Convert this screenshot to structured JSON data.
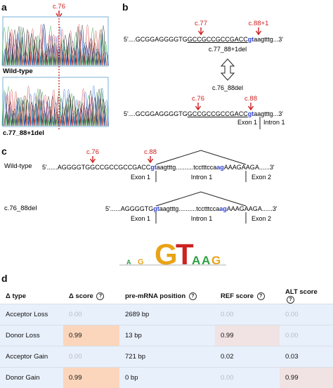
{
  "panel_a": {
    "letter": "a",
    "marker": "c.76",
    "wild_label": "Wild-type",
    "mut_label": "c.77_88+1del"
  },
  "panel_b": {
    "letter": "b",
    "top_seq": {
      "prefix": "5'....GCGGAGGGGTG",
      "mid": "GCCGCCGCCGACC",
      "gt": "gt",
      "tail": "aagtttg...3'"
    },
    "top_markers": {
      "left": "c.77",
      "right": "c.88+1"
    },
    "top_label": "c.77_88+1del",
    "bottom_label": "c.76_88del",
    "bottom_markers": {
      "left": "c.76",
      "right": "c.88"
    },
    "bottom_seq": {
      "prefix": "5'....GCGGAGGGGTG",
      "mid": "GCCGCCGCCGACC",
      "gt": "gt",
      "tail": "aagtttg...3'"
    },
    "exon": "Exon 1",
    "intron": "Intron 1"
  },
  "panel_c": {
    "letter": "c",
    "wild_label": "Wild-type",
    "mut_label": "c.76_88del",
    "wt_markers": {
      "left": "c.76",
      "right": "c.88"
    },
    "wt_seq": {
      "a": "5'......AGGGGTGGCCGCCGCCGACC",
      "gt": "gt",
      "b": "aagtttg..........tcctttcca",
      "ag": "ag",
      "c": "AAAGAAGA......3'"
    },
    "mut_seq": {
      "a": "5'......AGGGGTG",
      "gt": "gt",
      "b": "aagtttg..........tcctttcca",
      "ag": "ag",
      "c": "AAAGAAGA......3'"
    },
    "exon1": "Exon 1",
    "intron1": "Intron 1",
    "exon2": "Exon 2",
    "logo_letters": [
      "A",
      "G",
      "G",
      "T",
      "A",
      "A",
      "G"
    ]
  },
  "panel_d": {
    "letter": "d",
    "columns": [
      "Δ type",
      "Δ score",
      "pre-mRNA position",
      "REF score",
      "ALT score"
    ],
    "help_icon": "?",
    "rows": [
      {
        "type": "Acceptor Loss",
        "score": "0.00",
        "pos": "2689 bp",
        "ref": "0.00",
        "alt": "0.00"
      },
      {
        "type": "Donor Loss",
        "score": "0.99",
        "pos": "13 bp",
        "ref": "0.99",
        "alt": "0.00"
      },
      {
        "type": "Acceptor Gain",
        "score": "0.00",
        "pos": "721 bp",
        "ref": "0.02",
        "alt": "0.03"
      },
      {
        "type": "Donor Gain",
        "score": "0.99",
        "pos": "0 bp",
        "ref": "0.00",
        "alt": "0.99"
      }
    ]
  },
  "colors": {
    "red": "#cc1f1f",
    "blue": "#2b3fd1",
    "orange_cell": "#fbd6bc",
    "pink_cell": "#f1e3e3",
    "row_bg": "#e8f0fb"
  }
}
